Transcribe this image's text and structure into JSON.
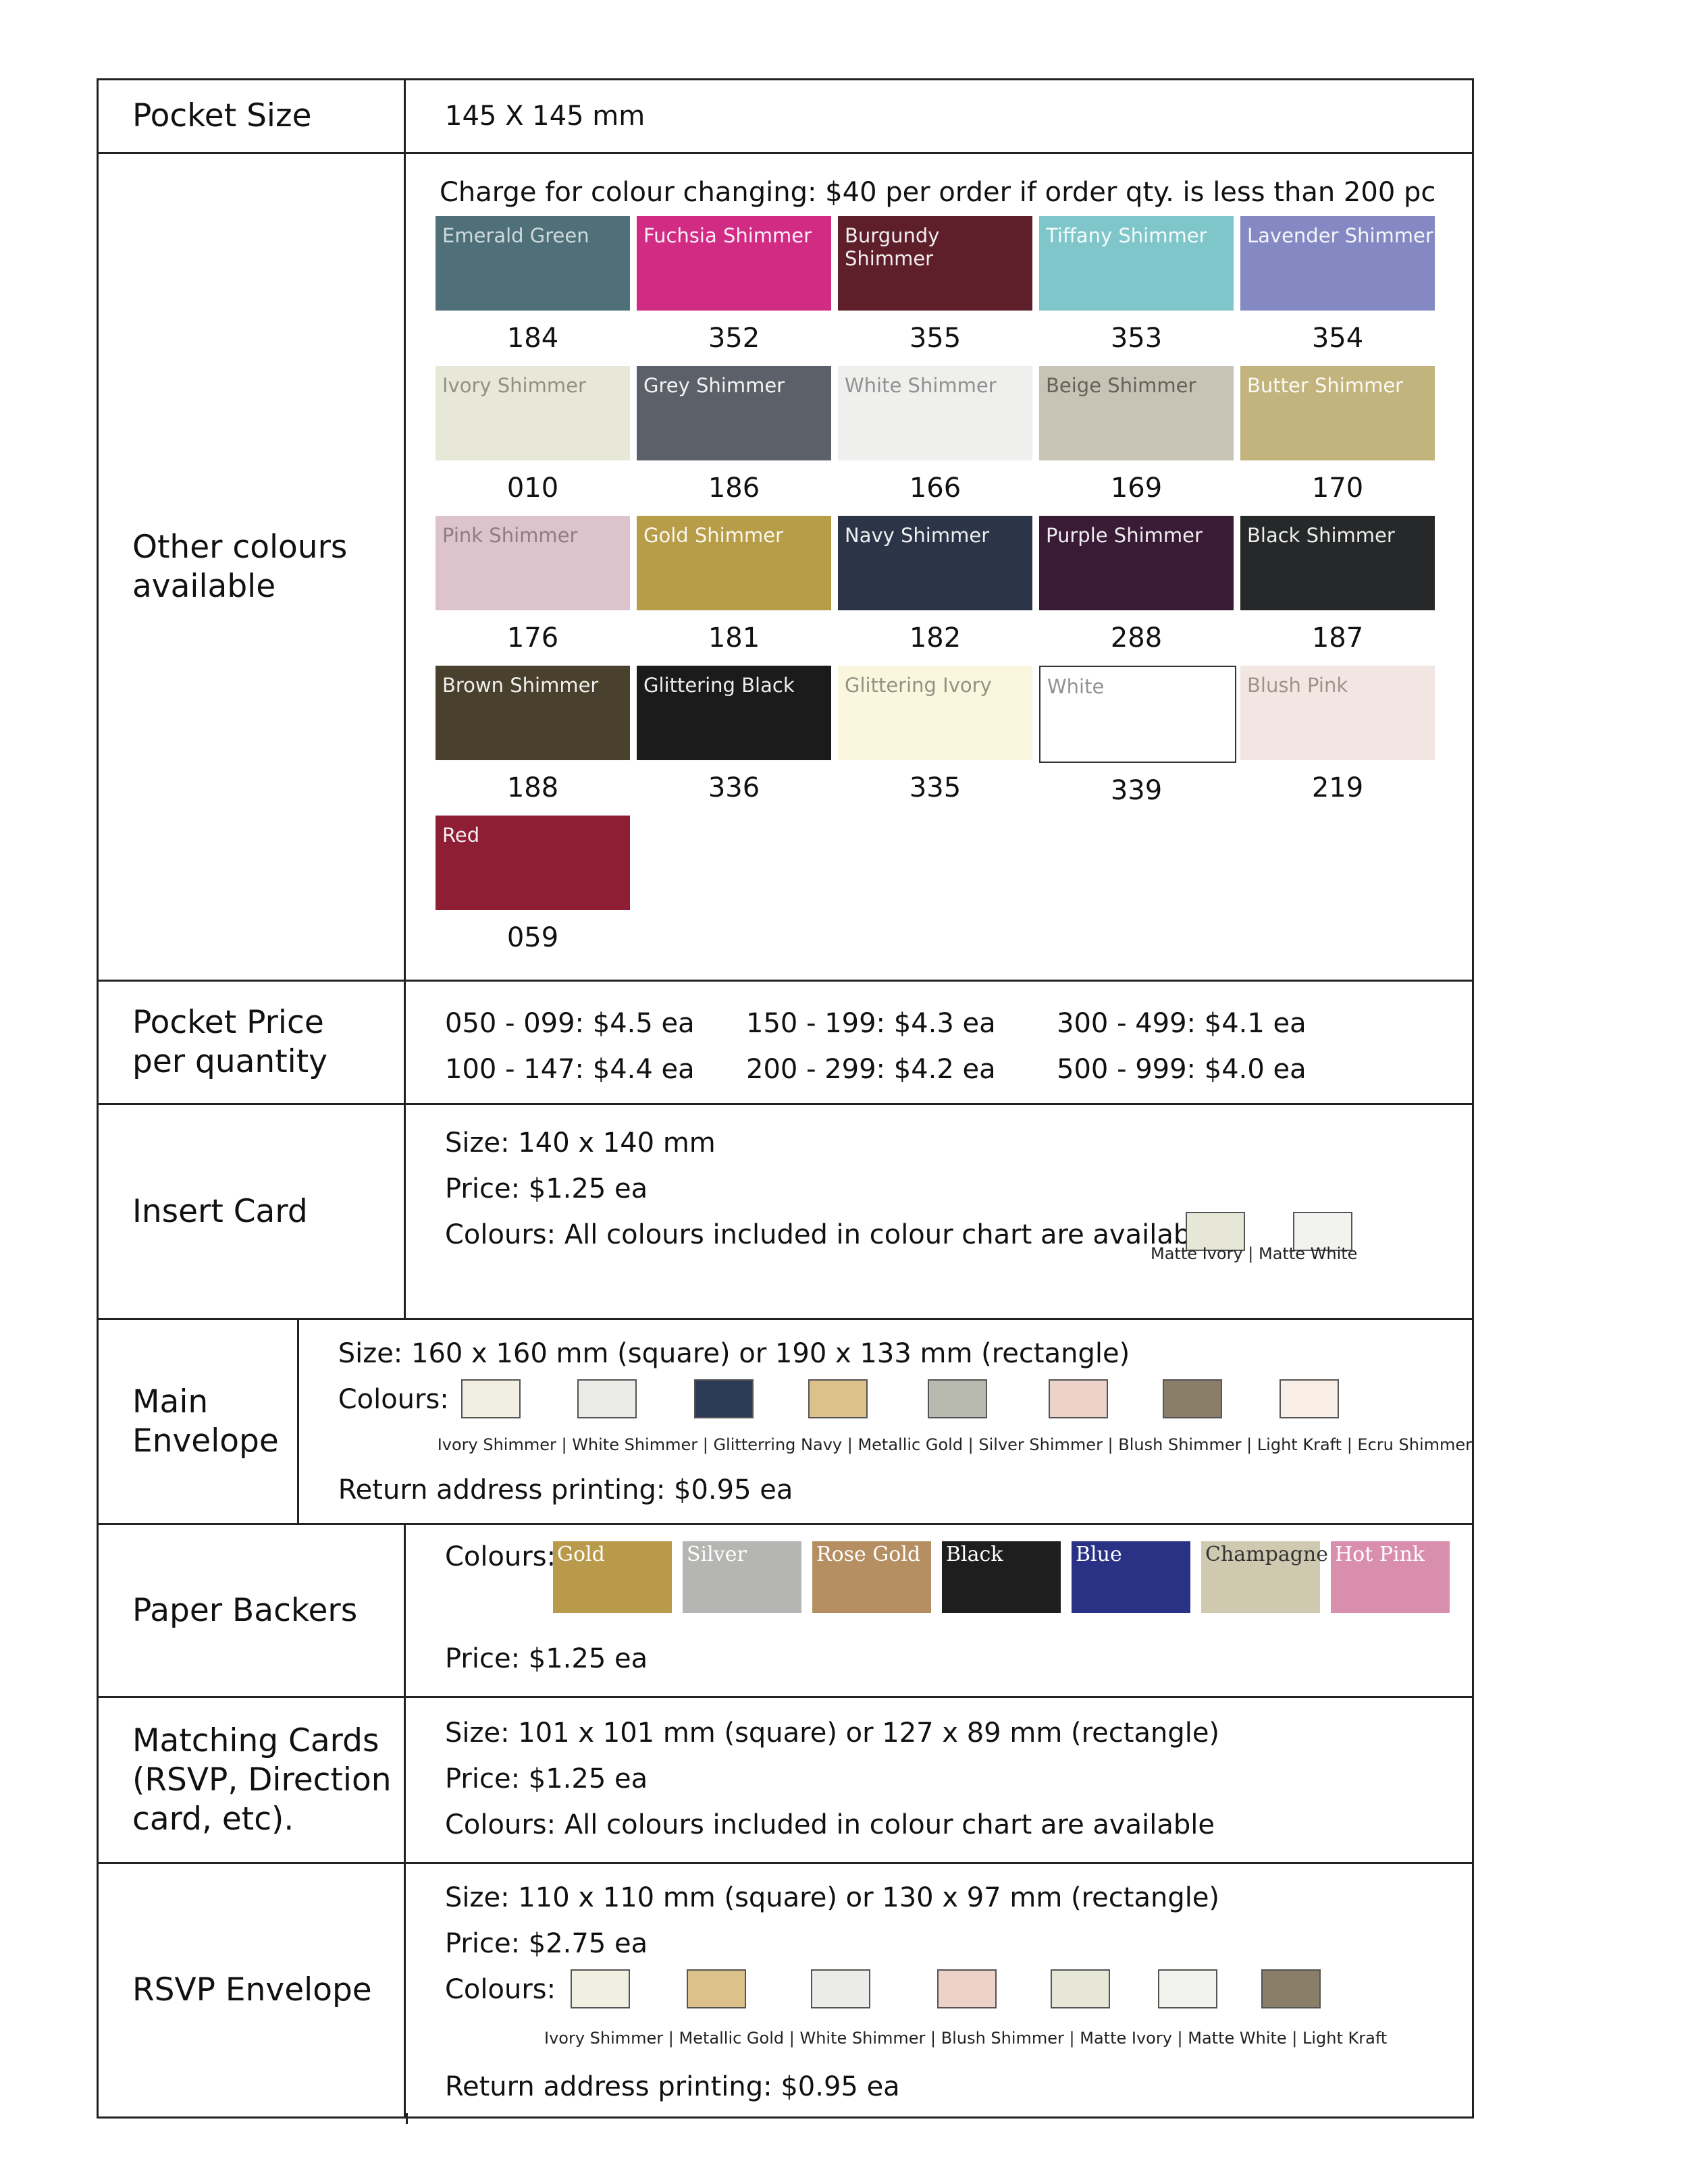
{
  "pocket_size": {
    "label": "Pocket Size",
    "value": "145 X 145 mm"
  },
  "other_colours": {
    "label_line1": "Other colours",
    "label_line2": "available",
    "charge_note": "Charge for colour changing: $40 per order if order qty. is less than 200 pc",
    "swatches": [
      {
        "name": "Emerald Green",
        "code": "184",
        "color": "#4f6f79",
        "text": "#d8e2e4"
      },
      {
        "name": "Fuchsia Shimmer",
        "code": "352",
        "color": "#d12b84",
        "text": "#ffffff"
      },
      {
        "name": "Burgundy Shimmer",
        "code": "355",
        "color": "#5e1e2a",
        "text": "#ffffff"
      },
      {
        "name": "Tiffany Shimmer",
        "code": "353",
        "color": "#7fc6cb",
        "text": "#ffffff"
      },
      {
        "name": "Lavender Shimmer",
        "code": "354",
        "color": "#8489c3",
        "text": "#ffffff"
      },
      {
        "name": "Ivory Shimmer",
        "code": "010",
        "color": "#e8e8d8",
        "text": "#8a8a7a"
      },
      {
        "name": "Grey Shimmer",
        "code": "186",
        "color": "#5c6068",
        "text": "#ffffff"
      },
      {
        "name": "White Shimmer",
        "code": "166",
        "color": "#efefed",
        "text": "#8a8a8a"
      },
      {
        "name": "Beige Shimmer",
        "code": "169",
        "color": "#c7c3b5",
        "text": "#5c5a52"
      },
      {
        "name": "Butter Shimmer",
        "code": "170",
        "color": "#c2b47c",
        "text": "#ffffff"
      },
      {
        "name": "Pink Shimmer",
        "code": "176",
        "color": "#dcc3cc",
        "text": "#8a7680"
      },
      {
        "name": "Gold Shimmer",
        "code": "181",
        "color": "#b79d47",
        "text": "#ffffff"
      },
      {
        "name": "Navy Shimmer",
        "code": "182",
        "color": "#2c3447",
        "text": "#ffffff"
      },
      {
        "name": "Purple Shimmer",
        "code": "288",
        "color": "#3a1b35",
        "text": "#ffffff"
      },
      {
        "name": "Black Shimmer",
        "code": "187",
        "color": "#262829",
        "text": "#ffffff"
      },
      {
        "name": "Brown Shimmer",
        "code": "188",
        "color": "#4a402e",
        "text": "#ffffff"
      },
      {
        "name": "Glittering Black",
        "code": "336",
        "color": "#1b1b1b",
        "text": "#ffffff"
      },
      {
        "name": "Glittering Ivory",
        "code": "335",
        "color": "#fbf7df",
        "text": "#8a8a7a"
      },
      {
        "name": "White",
        "code": "339",
        "color": "#ffffff",
        "text": "#8a8a8a"
      },
      {
        "name": "Blush Pink",
        "code": "219",
        "color": "#f1e6e2",
        "text": "#9a8a86"
      },
      {
        "name": "Red",
        "code": "059",
        "color": "#8d1e33",
        "text": "#ffffff"
      }
    ]
  },
  "pocket_price": {
    "label_line1": "Pocket Price",
    "label_line2": "per quantity",
    "tiers": [
      "050 - 099: $4.5 ea",
      "150 - 199: $4.3 ea",
      "300 - 499: $4.1 ea",
      "100 - 147: $4.4 ea",
      "200 - 299: $4.2 ea",
      "500 - 999: $4.0 ea"
    ]
  },
  "insert_card": {
    "label": "Insert Card",
    "size": "Size: 140 x 140 mm",
    "price": "Price: $1.25 ea",
    "colours": "Colours: All colours included in colour chart are available +",
    "extra_caption": "Matte Ivory | Matte White",
    "extra_colors": [
      "#e6e7d6",
      "#f2f2ee"
    ]
  },
  "main_envelope": {
    "label": "Main Envelope",
    "size": "Size: 160 x 160 mm (square) or 190 x 133 mm (rectangle)",
    "colours_label": "Colours:",
    "caption": "Ivory Shimmer | White Shimmer | Glitterring Navy | Metallic Gold |  Silver Shimmer | Blush Shimmer | Light Kraft | Ecru Shimmer",
    "colors": [
      "#f0efe2",
      "#ebebe8",
      "#2c3b55",
      "#dcc18a",
      "#b8baaf",
      "#ecd2c8",
      "#8b7e68",
      "#f8eee5"
    ],
    "return_printing": "Return address printing: $0.95 ea"
  },
  "paper_backers": {
    "label": "Paper Backers",
    "colours_label": "Colours:",
    "backers": [
      {
        "name": "Gold",
        "color": "#b89a4a"
      },
      {
        "name": "Silver",
        "color": "#b5b5b3"
      },
      {
        "name": "Rose Gold",
        "color": "#b58f62"
      },
      {
        "name": "Black",
        "color": "#1e1e1f"
      },
      {
        "name": "Blue",
        "color": "#2a3285"
      },
      {
        "name": "Champagne",
        "color": "#cfc9b0"
      },
      {
        "name": "Hot Pink",
        "color": "#d98eae"
      }
    ],
    "price": "Price: $1.25 ea"
  },
  "matching_cards": {
    "label_line1": "Matching Cards",
    "label_line2": "(RSVP, Direction",
    "label_line3": "card, etc).",
    "size": "Size:  101 x 101 mm (square) or 127 x 89 mm (rectangle)",
    "price": "Price: $1.25 ea",
    "colours": "Colours: All colours included in colour chart are available"
  },
  "rsvp_envelope": {
    "label": "RSVP Envelope",
    "size": "Size: 110 x 110 mm (square) or 130 x 97 mm (rectangle)",
    "price": "Price: $2.75 ea",
    "colours_label": "Colours:",
    "caption": "Ivory Shimmer | Metallic Gold | White Shimmer | Blush Shimmer | Matte Ivory | Matte White | Light Kraft",
    "colors": [
      "#f0efe2",
      "#dcc18a",
      "#ebebe8",
      "#ecd2c8",
      "#e6e7d6",
      "#f2f2ee",
      "#8b7e68"
    ],
    "return_printing": "Return address printing: $0.95 ea"
  }
}
